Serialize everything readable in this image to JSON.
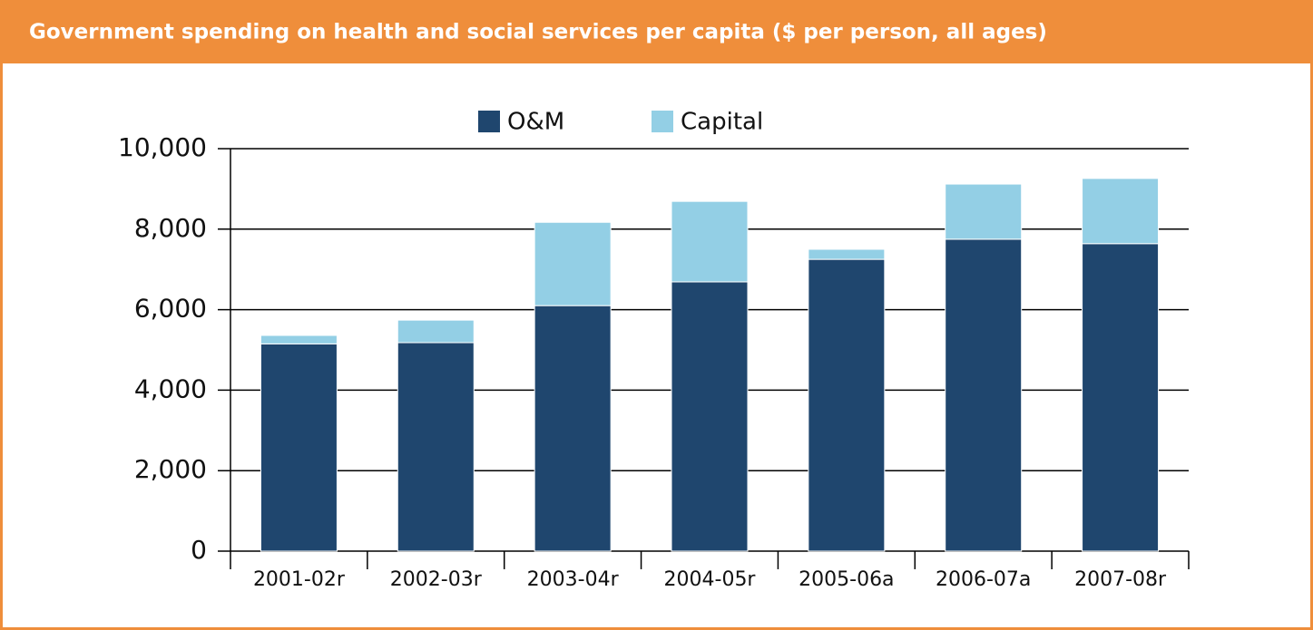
{
  "chart_data": {
    "type": "stacked_bar",
    "title": "Government spending on health and social services per capita ($ per person, all ages)",
    "categories": [
      "2001-02r",
      "2002-03r",
      "2003-04r",
      "2004-05r",
      "2005-06a",
      "2006-07a",
      "2007-08r"
    ],
    "series": [
      {
        "name": "O&M",
        "color": "#1f466e",
        "values": [
          5150,
          5180,
          6100,
          6690,
          7250,
          7750,
          7640
        ]
      },
      {
        "name": "Capital",
        "color": "#93cfe5",
        "values": [
          210,
          560,
          2070,
          2000,
          250,
          1370,
          1620
        ]
      }
    ],
    "ylim": [
      0,
      10000
    ],
    "yticks": [
      0,
      {
        "value": 2000,
        "label": "2,000"
      },
      {
        "value": 4000,
        "label": "4,000"
      },
      {
        "value": 6000,
        "label": "6,000"
      },
      {
        "value": 8000,
        "label": "8,000"
      },
      {
        "value": 10000,
        "label": "10,000"
      }
    ],
    "grid": true,
    "legend": "top"
  }
}
